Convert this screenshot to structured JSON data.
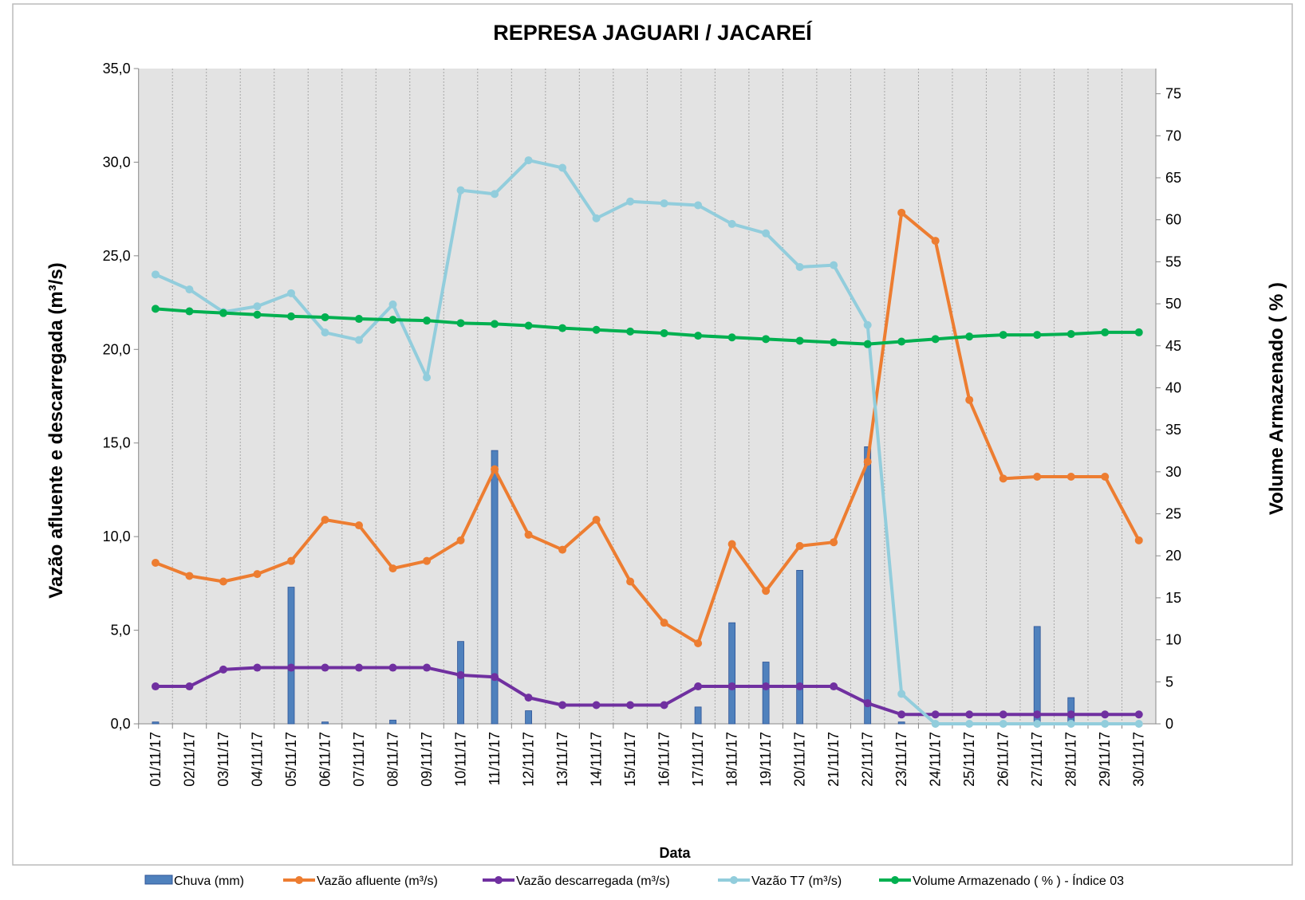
{
  "chart_data": {
    "type": "combo",
    "title": "REPRESA JAGUARI / JACAREÍ",
    "y_label": "Vazão afluente e descarregada (m³/s)",
    "y2_label": "Volume Armazenado ( % )",
    "x_label": "Data",
    "categories": [
      "01/11/17",
      "02/11/17",
      "03/11/17",
      "04/11/17",
      "05/11/17",
      "06/11/17",
      "07/11/17",
      "08/11/17",
      "09/11/17",
      "10/11/17",
      "11/11/17",
      "12/11/17",
      "13/11/17",
      "14/11/17",
      "15/11/17",
      "16/11/17",
      "17/11/17",
      "18/11/17",
      "19/11/17",
      "20/11/17",
      "21/11/17",
      "22/11/17",
      "23/11/17",
      "24/11/17",
      "25/11/17",
      "26/11/17",
      "27/11/17",
      "28/11/17",
      "29/11/17",
      "30/11/17"
    ],
    "ylim": [
      0,
      35
    ],
    "yticks": [
      {
        "value": 0,
        "label": "0,0"
      },
      {
        "value": 5,
        "label": "5,0"
      },
      {
        "value": 10,
        "label": "10,0"
      },
      {
        "value": 15,
        "label": "15,0"
      },
      {
        "value": 20,
        "label": "20,0"
      },
      {
        "value": 25,
        "label": "25,0"
      },
      {
        "value": 30,
        "label": "30,0"
      },
      {
        "value": 35,
        "label": "35,0"
      }
    ],
    "y2lim": [
      0,
      78
    ],
    "y2ticks": [
      0,
      5,
      10,
      15,
      20,
      25,
      30,
      35,
      40,
      45,
      50,
      55,
      60,
      65,
      70,
      75
    ],
    "grid": true,
    "legend": "bottom",
    "series": [
      {
        "name": "Chuva (mm)",
        "type": "bar",
        "color": "#4f81bd",
        "values": [
          0.1,
          0,
          0,
          0,
          7.3,
          0.1,
          0,
          0.2,
          0,
          4.4,
          14.6,
          0.7,
          0,
          0,
          0,
          0,
          0.9,
          5.4,
          3.3,
          8.2,
          0,
          14.8,
          0.1,
          0,
          0,
          0,
          5.2,
          1.4,
          0,
          0
        ]
      },
      {
        "name": "Vazão afluente (m³/s)",
        "type": "line",
        "color": "#ed7d31",
        "values": [
          8.6,
          7.9,
          7.6,
          8.0,
          8.7,
          10.9,
          10.6,
          8.3,
          8.7,
          9.8,
          13.6,
          10.1,
          9.3,
          10.9,
          7.6,
          5.4,
          4.3,
          9.6,
          7.1,
          9.5,
          9.7,
          14.0,
          27.3,
          25.8,
          17.3,
          13.1,
          13.2,
          13.2,
          13.2,
          9.8
        ]
      },
      {
        "name": "Vazão descarregada (m³/s)",
        "type": "line",
        "color": "#7030a0",
        "values": [
          2.0,
          2.0,
          2.9,
          3.0,
          3.0,
          3.0,
          3.0,
          3.0,
          3.0,
          2.6,
          2.5,
          1.4,
          1.0,
          1.0,
          1.0,
          1.0,
          2.0,
          2.0,
          2.0,
          2.0,
          2.0,
          1.1,
          0.5,
          0.5,
          0.5,
          0.5,
          0.5,
          0.5,
          0.5,
          0.5
        ]
      },
      {
        "name": "Vazão T7 (m³/s)",
        "type": "line",
        "color": "#92cddc",
        "values": [
          24.0,
          23.2,
          22.0,
          22.3,
          23.0,
          20.9,
          20.5,
          22.4,
          18.5,
          28.5,
          28.3,
          30.1,
          29.7,
          27.0,
          27.9,
          27.8,
          27.7,
          26.7,
          26.2,
          24.4,
          24.5,
          21.3,
          1.6,
          0,
          0,
          0,
          0,
          0,
          0,
          0
        ]
      },
      {
        "name": "Volume Armazenado ( % ) - Índice 03",
        "type": "line",
        "axis": "y2",
        "color": "#00b050",
        "values": [
          49.4,
          49.1,
          48.9,
          48.7,
          48.5,
          48.4,
          48.2,
          48.1,
          48.0,
          47.7,
          47.6,
          47.4,
          47.1,
          46.9,
          46.7,
          46.5,
          46.2,
          46.0,
          45.8,
          45.6,
          45.4,
          45.2,
          45.5,
          45.8,
          46.1,
          46.3,
          46.3,
          46.4,
          46.6,
          46.6
        ]
      }
    ]
  }
}
